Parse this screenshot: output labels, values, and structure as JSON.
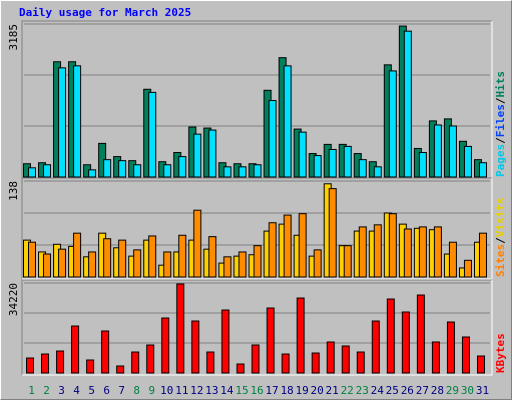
{
  "title": "Daily usage for March 2025",
  "chart_data": [
    {
      "type": "bar",
      "ylim": [
        0,
        3185
      ],
      "yticks": [
        3185
      ],
      "legend": [
        {
          "text": "Pages",
          "color": "#00c8e8"
        },
        {
          "text": "/",
          "color": "#000000"
        },
        {
          "text": "Files",
          "color": "#0040ff"
        },
        {
          "text": "/",
          "color": "#000000"
        },
        {
          "text": "Hits",
          "color": "#00805c"
        }
      ],
      "series": [
        {
          "name": "Hits",
          "color": "#00805c",
          "values": [
            276,
            297,
            2399,
            2399,
            255,
            700,
            425,
            340,
            1826,
            318,
            510,
            1040,
            1019,
            297,
            276,
            276,
            1805,
            2484,
            998,
            488,
            679,
            679,
            488,
            318,
            2335,
            3142,
            594,
            1168,
            1210,
            743,
            361
          ]
        },
        {
          "name": "Pages",
          "color": "#00e0ff",
          "values": [
            191,
            255,
            2272,
            2314,
            149,
            361,
            340,
            255,
            1762,
            255,
            425,
            892,
            977,
            212,
            212,
            255,
            1592,
            2314,
            934,
            446,
            573,
            637,
            361,
            212,
            2208,
            3036,
            510,
            1083,
            1062,
            637,
            297
          ]
        }
      ]
    },
    {
      "type": "bar",
      "ylim": [
        0,
        138
      ],
      "yticks": [
        138
      ],
      "legend": [
        {
          "text": "Sites",
          "color": "#ff8000"
        },
        {
          "text": "/",
          "color": "#000000"
        },
        {
          "text": "Visits",
          "color": "#e8d000"
        }
      ],
      "series": [
        {
          "name": "Visits",
          "color": "#ffd000",
          "values": [
            53,
            36,
            47,
            44,
            29,
            63,
            42,
            30,
            53,
            17,
            36,
            53,
            40,
            20,
            30,
            32,
            66,
            76,
            60,
            30,
            134,
            45,
            66,
            66,
            92,
            76,
            70,
            68,
            33,
            13,
            50
          ]
        },
        {
          "name": "Sites",
          "color": "#ff8c00",
          "values": [
            50,
            33,
            40,
            63,
            36,
            55,
            53,
            39,
            59,
            36,
            60,
            96,
            58,
            29,
            36,
            45,
            78,
            89,
            91,
            39,
            127,
            45,
            72,
            75,
            91,
            69,
            72,
            72,
            50,
            24,
            63
          ]
        }
      ]
    },
    {
      "type": "bar",
      "ylim": [
        0,
        34220
      ],
      "yticks": [
        34220
      ],
      "legend": [
        {
          "text": "KBytes",
          "color": "#ff0000"
        }
      ],
      "series": [
        {
          "name": "KBytes",
          "color": "#ff0000",
          "values": [
            5700,
            7220,
            8360,
            17870,
            4940,
            15970,
            2660,
            7980,
            10650,
            20910,
            33840,
            19770,
            7980,
            23950,
            3420,
            10650,
            24710,
            7220,
            28510,
            7600,
            11790,
            10270,
            7980,
            19770,
            28130,
            23190,
            29650,
            11790,
            19390,
            13690,
            6460
          ]
        }
      ],
      "categories": [
        "1",
        "2",
        "3",
        "4",
        "5",
        "6",
        "7",
        "8",
        "9",
        "10",
        "11",
        "12",
        "13",
        "14",
        "15",
        "16",
        "17",
        "18",
        "19",
        "20",
        "21",
        "22",
        "23",
        "24",
        "25",
        "26",
        "27",
        "28",
        "29",
        "30",
        "31"
      ],
      "category_colors": [
        "#008040",
        "#008040",
        "#000080",
        "#000080",
        "#000080",
        "#000080",
        "#000080",
        "#008040",
        "#008040",
        "#000080",
        "#000080",
        "#000080",
        "#000080",
        "#000080",
        "#008040",
        "#008040",
        "#000080",
        "#000080",
        "#000080",
        "#000080",
        "#000080",
        "#008040",
        "#008040",
        "#000080",
        "#000080",
        "#000080",
        "#000080",
        "#000080",
        "#008040",
        "#008040",
        "#000080"
      ]
    }
  ]
}
